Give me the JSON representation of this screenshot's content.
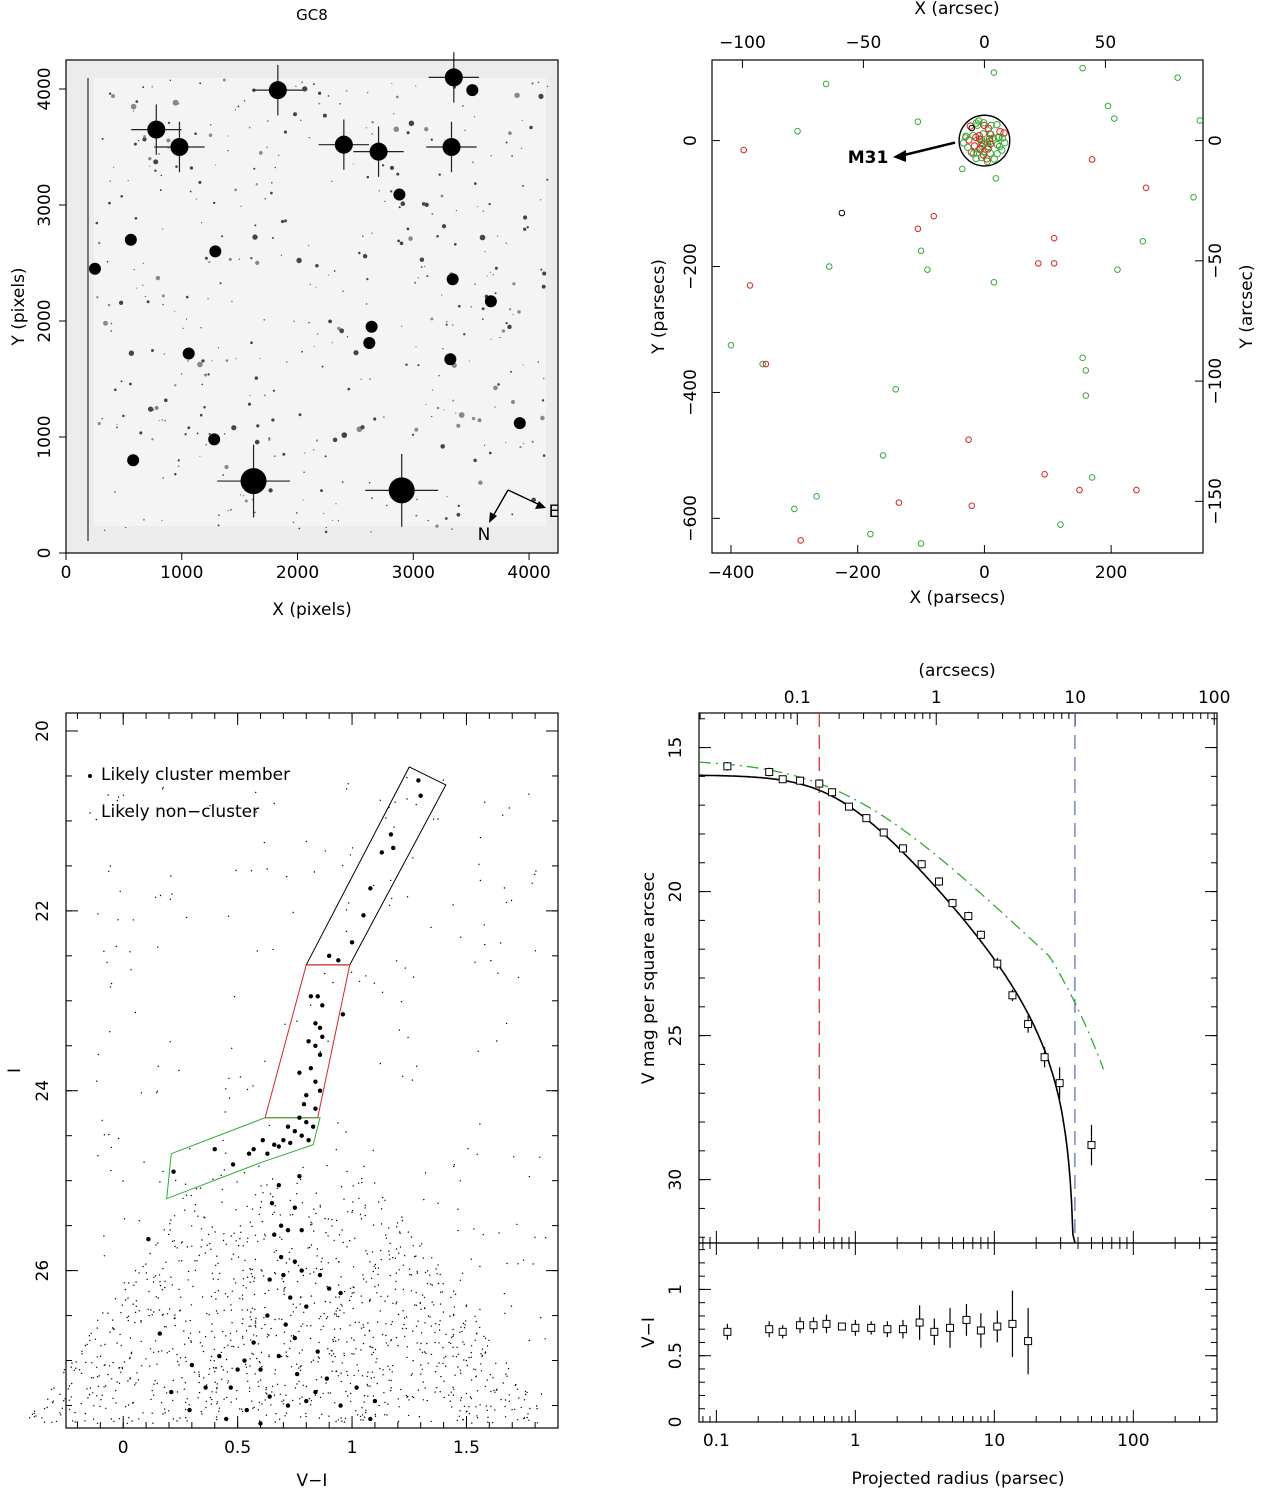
{
  "chart_data": [
    {
      "id": "panel_image",
      "type": "image",
      "title": "GC8",
      "xlabel": "X (pixels)",
      "ylabel": "Y (pixels)",
      "xlim": [
        0,
        4250
      ],
      "ylim": [
        0,
        4250
      ],
      "xticks": [
        0,
        1000,
        2000,
        3000,
        4000
      ],
      "yticks": [
        0,
        1000,
        2000,
        3000,
        4000
      ],
      "compass": {
        "north": "N",
        "east": "E"
      },
      "bright_sources": [
        {
          "x": 1620,
          "y": 620
        },
        {
          "x": 2900,
          "y": 540
        },
        {
          "x": 980,
          "y": 3500
        },
        {
          "x": 2400,
          "y": 3520
        },
        {
          "x": 2700,
          "y": 3460
        },
        {
          "x": 3330,
          "y": 3500
        },
        {
          "x": 780,
          "y": 3650
        },
        {
          "x": 1830,
          "y": 3990
        },
        {
          "x": 3350,
          "y": 4100
        },
        {
          "x": 560,
          "y": 2700
        },
        {
          "x": 1290,
          "y": 2600
        },
        {
          "x": 3340,
          "y": 2360
        },
        {
          "x": 3670,
          "y": 2170
        },
        {
          "x": 2640,
          "y": 1950
        },
        {
          "x": 2620,
          "y": 1810
        },
        {
          "x": 1060,
          "y": 1720
        },
        {
          "x": 3320,
          "y": 1670
        },
        {
          "x": 580,
          "y": 800
        },
        {
          "x": 1280,
          "y": 980
        },
        {
          "x": 2880,
          "y": 3090
        },
        {
          "x": 250,
          "y": 2450
        },
        {
          "x": 3920,
          "y": 1120
        },
        {
          "x": 3510,
          "y": 3990
        }
      ]
    },
    {
      "id": "panel_map",
      "type": "scatter",
      "xlabel": "X (parsecs)",
      "ylabel": "Y (parsecs)",
      "x2label": "X (arcsec)",
      "y2label": "Y (arcsec)",
      "xlim": [
        -430,
        345
      ],
      "ylim": [
        -655,
        128
      ],
      "xticks": [
        -400,
        -200,
        0,
        200
      ],
      "yticks": [
        -600,
        -400,
        -200,
        0
      ],
      "x2ticks": [
        -100,
        -50,
        0,
        50
      ],
      "y2ticks": [
        -150,
        -100,
        -50,
        0
      ],
      "arcsec_per_parsec": 0.2618,
      "annotation": "M31",
      "inner_circle_radius_pc": 40,
      "colors": {
        "green": "#33aa33",
        "red": "#dd2222",
        "black": "#000000"
      },
      "series": [
        {
          "color": "green",
          "points": [
            [
              -250,
              90
            ],
            [
              -295,
              15
            ],
            [
              -105,
              30
            ],
            [
              15,
              108
            ],
            [
              155,
              115
            ],
            [
              195,
              55
            ],
            [
              205,
              35
            ],
            [
              305,
              100
            ],
            [
              340,
              32
            ],
            [
              -30,
              5
            ],
            [
              18,
              -60
            ],
            [
              -35,
              -45
            ],
            [
              -100,
              -175
            ],
            [
              -90,
              -205
            ],
            [
              -245,
              -200
            ],
            [
              15,
              -225
            ],
            [
              210,
              -205
            ],
            [
              250,
              -160
            ],
            [
              330,
              -90
            ],
            [
              -400,
              -325
            ],
            [
              -350,
              -355
            ],
            [
              -140,
              -395
            ],
            [
              155,
              -345
            ],
            [
              160,
              -365
            ],
            [
              160,
              -405
            ],
            [
              -160,
              -500
            ],
            [
              -265,
              -565
            ],
            [
              -300,
              -585
            ],
            [
              -180,
              -625
            ],
            [
              -100,
              -640
            ],
            [
              170,
              -535
            ],
            [
              120,
              -610
            ]
          ]
        },
        {
          "color": "red",
          "points": [
            [
              -380,
              -15
            ],
            [
              -105,
              -140
            ],
            [
              -80,
              -120
            ],
            [
              -370,
              -230
            ],
            [
              -345,
              -355
            ],
            [
              -25,
              -475
            ],
            [
              -135,
              -575
            ],
            [
              -20,
              -580
            ],
            [
              -290,
              -635
            ],
            [
              85,
              -195
            ],
            [
              110,
              -155
            ],
            [
              110,
              -195
            ],
            [
              170,
              -30
            ],
            [
              255,
              -75
            ],
            [
              95,
              -530
            ],
            [
              150,
              -555
            ],
            [
              240,
              -555
            ]
          ]
        },
        {
          "color": "black",
          "points": [
            [
              -225,
              -115
            ],
            [
              -20,
              20
            ]
          ]
        }
      ]
    },
    {
      "id": "panel_cmd",
      "type": "scatter",
      "xlabel": "V−I",
      "ylabel": "I",
      "xlim": [
        -0.25,
        1.9
      ],
      "ylim": [
        27.75,
        19.8
      ],
      "xticks": [
        0,
        0.5,
        1,
        1.5
      ],
      "yticks": [
        20,
        22,
        24,
        26
      ],
      "legend": {
        "placement": "top-left",
        "member": "Likely cluster member",
        "nonmember": "Likely non−cluster"
      },
      "boxes": [
        {
          "color": "#000000",
          "points": [
            [
              0.8,
              22.6
            ],
            [
              1.25,
              20.4
            ],
            [
              1.41,
              20.6
            ],
            [
              0.99,
              22.6
            ]
          ]
        },
        {
          "color": "#dd2222",
          "points": [
            [
              0.8,
              22.6
            ],
            [
              0.99,
              22.6
            ],
            [
              0.85,
              24.3
            ],
            [
              0.62,
              24.3
            ]
          ]
        },
        {
          "color": "#33aa33",
          "points": [
            [
              0.62,
              24.3
            ],
            [
              0.86,
              24.3
            ],
            [
              0.83,
              24.6
            ],
            [
              0.6,
              24.8
            ],
            [
              0.19,
              25.2
            ],
            [
              0.21,
              24.7
            ]
          ]
        }
      ],
      "members": [
        [
          1.29,
          20.55
        ],
        [
          1.3,
          20.72
        ],
        [
          1.17,
          21.15
        ],
        [
          1.18,
          21.3
        ],
        [
          1.13,
          21.35
        ],
        [
          1.08,
          21.75
        ],
        [
          1.05,
          22.05
        ],
        [
          1.0,
          22.35
        ],
        [
          0.9,
          22.5
        ],
        [
          0.94,
          22.55
        ],
        [
          0.82,
          22.95
        ],
        [
          0.85,
          22.95
        ],
        [
          0.87,
          23.05
        ],
        [
          0.96,
          23.15
        ],
        [
          0.84,
          23.25
        ],
        [
          0.86,
          23.3
        ],
        [
          0.87,
          23.4
        ],
        [
          0.81,
          23.45
        ],
        [
          0.84,
          23.5
        ],
        [
          0.86,
          23.6
        ],
        [
          0.77,
          23.8
        ],
        [
          0.82,
          23.75
        ],
        [
          0.84,
          23.9
        ],
        [
          0.86,
          24.0
        ],
        [
          0.8,
          24.05
        ],
        [
          0.79,
          24.15
        ],
        [
          0.84,
          24.2
        ],
        [
          0.77,
          24.3
        ],
        [
          0.8,
          24.35
        ],
        [
          0.83,
          24.4
        ],
        [
          0.72,
          24.4
        ],
        [
          0.75,
          24.45
        ],
        [
          0.78,
          24.5
        ],
        [
          0.81,
          24.55
        ],
        [
          0.7,
          24.55
        ],
        [
          0.66,
          24.6
        ],
        [
          0.61,
          24.55
        ],
        [
          0.57,
          24.65
        ],
        [
          0.55,
          24.7
        ],
        [
          0.63,
          24.7
        ],
        [
          0.68,
          24.62
        ],
        [
          0.73,
          24.58
        ],
        [
          0.48,
          24.82
        ],
        [
          0.4,
          24.65
        ],
        [
          0.22,
          24.9
        ],
        [
          0.77,
          24.95
        ],
        [
          0.68,
          25.05
        ],
        [
          0.65,
          25.25
        ],
        [
          0.75,
          25.3
        ],
        [
          0.69,
          25.5
        ],
        [
          0.72,
          25.55
        ],
        [
          0.66,
          25.6
        ],
        [
          0.78,
          25.55
        ],
        [
          0.69,
          25.85
        ],
        [
          0.75,
          25.9
        ],
        [
          0.64,
          26.1
        ],
        [
          0.7,
          26.05
        ],
        [
          0.78,
          26.0
        ],
        [
          0.86,
          26.05
        ],
        [
          0.73,
          26.3
        ],
        [
          0.9,
          26.2
        ],
        [
          0.8,
          26.4
        ],
        [
          0.63,
          26.5
        ],
        [
          0.71,
          26.6
        ],
        [
          0.95,
          26.25
        ],
        [
          0.57,
          26.8
        ],
        [
          0.75,
          26.75
        ],
        [
          0.68,
          26.95
        ],
        [
          0.85,
          26.9
        ],
        [
          0.42,
          26.95
        ],
        [
          0.53,
          27.0
        ],
        [
          0.3,
          27.05
        ],
        [
          0.6,
          27.1
        ],
        [
          0.76,
          27.15
        ],
        [
          0.89,
          27.2
        ],
        [
          0.47,
          27.3
        ],
        [
          0.36,
          27.3
        ],
        [
          0.21,
          27.35
        ],
        [
          0.64,
          27.4
        ],
        [
          0.84,
          27.35
        ],
        [
          1.02,
          27.3
        ],
        [
          0.54,
          27.55
        ],
        [
          0.29,
          27.55
        ],
        [
          0.72,
          27.5
        ],
        [
          0.45,
          27.65
        ],
        [
          0.6,
          27.7
        ],
        [
          0.95,
          27.5
        ],
        [
          1.08,
          27.65
        ],
        [
          0.11,
          25.65
        ],
        [
          0.16,
          26.7
        ],
        [
          1.1,
          27.45
        ],
        [
          0.5,
          27.1
        ],
        [
          0.8,
          27.45
        ]
      ]
    },
    {
      "id": "panel_profile",
      "type": "line",
      "xlabel": "Projected radius (parsec)",
      "ylabel": "V mag per square arcsec",
      "x2label": "(arcsecs)",
      "xscale": "log",
      "xlim": [
        0.075,
        400
      ],
      "ylim": [
        32.2,
        13.8
      ],
      "xticks": [
        0.1,
        1,
        10,
        100
      ],
      "x2ticks": [
        0.1,
        1,
        10,
        100
      ],
      "yticks": [
        15,
        20,
        25,
        30
      ],
      "arcsec_per_parsec": 0.2618,
      "vlines": [
        {
          "x": 0.55,
          "color": "#dd2222"
        },
        {
          "x": 38,
          "color": "#5566bb"
        }
      ],
      "data_points": [
        [
          0.12,
          15.65
        ],
        [
          0.24,
          15.85
        ],
        [
          0.3,
          16.1
        ],
        [
          0.4,
          16.15
        ],
        [
          0.55,
          16.25
        ],
        [
          0.68,
          16.55
        ],
        [
          0.9,
          17.05
        ],
        [
          1.2,
          17.45
        ],
        [
          1.6,
          17.95
        ],
        [
          2.2,
          18.5
        ],
        [
          3.0,
          19.05
        ],
        [
          4.0,
          19.65
        ],
        [
          5.0,
          20.4
        ],
        [
          6.5,
          20.85
        ],
        [
          8.0,
          21.5
        ],
        [
          10.5,
          22.5
        ],
        [
          13.5,
          23.6
        ],
        [
          17.5,
          24.6
        ],
        [
          23.0,
          25.75
        ],
        [
          29.5,
          26.65
        ],
        [
          50,
          28.8
        ]
      ],
      "data_errors": [
        0.15,
        0.15,
        0.1,
        0.1,
        0.1,
        0.1,
        0.1,
        0.1,
        0.1,
        0.1,
        0.15,
        0.15,
        0.15,
        0.15,
        0.15,
        0.2,
        0.2,
        0.3,
        0.35,
        0.55,
        0.7
      ],
      "king_model": {
        "color": "#000000",
        "r_core_pc": 0.7,
        "r_tidal_pc": 38,
        "mu0": 15.95
      },
      "alt_model": {
        "color": "#33aa33",
        "style": "dash-dot"
      },
      "color_panel": {
        "ylabel": "V−I",
        "ylim": [
          0,
          1.35
        ],
        "yticks": [
          0,
          0.5,
          1
        ],
        "points": [
          [
            0.12,
            0.68
          ],
          [
            0.24,
            0.7
          ],
          [
            0.3,
            0.68
          ],
          [
            0.4,
            0.73
          ],
          [
            0.5,
            0.73
          ],
          [
            0.62,
            0.74
          ],
          [
            0.8,
            0.72
          ],
          [
            1.0,
            0.71
          ],
          [
            1.3,
            0.71
          ],
          [
            1.7,
            0.7
          ],
          [
            2.2,
            0.7
          ],
          [
            2.9,
            0.75
          ],
          [
            3.7,
            0.68
          ],
          [
            4.8,
            0.71
          ],
          [
            6.3,
            0.77
          ],
          [
            8.0,
            0.69
          ],
          [
            10.5,
            0.72
          ],
          [
            13.5,
            0.74
          ],
          [
            17.5,
            0.61
          ]
        ],
        "errors": [
          0.06,
          0.06,
          0.05,
          0.06,
          0.06,
          0.07,
          0.03,
          0.06,
          0.05,
          0.06,
          0.07,
          0.13,
          0.1,
          0.15,
          0.12,
          0.13,
          0.12,
          0.25,
          0.25
        ]
      }
    }
  ]
}
